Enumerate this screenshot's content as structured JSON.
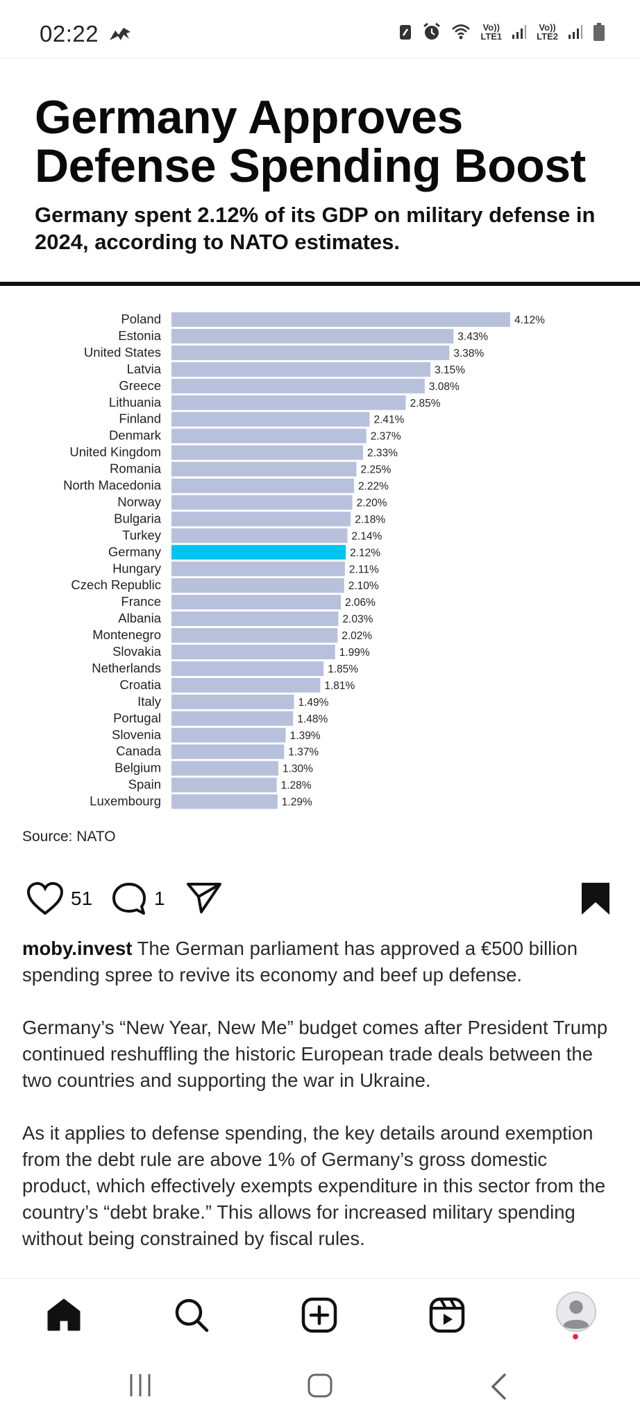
{
  "status_bar": {
    "time": "02:22",
    "net1": "LTE1",
    "net2": "LTE2",
    "vo1": "Vo))",
    "vo2": "Vo))",
    "signal_gen": "6"
  },
  "post": {
    "headline": "Germany Approves Defense Spending Boost",
    "subhead": "Germany spent 2.12% of its GDP on military defense in 2024, according to NATO estimates.",
    "source": "Source: NATO",
    "likes": "51",
    "comments": "1",
    "username": "moby.invest",
    "caption_paragraphs": [
      "The German parliament has approved a €500 billion spending spree to revive its economy and beef up defense.",
      "Germany’s “New Year, New Me” budget comes after President Trump continued reshuffling the historic European trade deals between the two countries and supporting the war in Ukraine.",
      "As it applies to defense spending, the key details around exemption from the debt rule are above 1% of Germany’s gross domestic product, which effectively exempts expenditure in this sector from the country’s “debt brake.” This allows for increased military spending without being constrained by fiscal rules."
    ]
  },
  "colors": {
    "bar": "#b7c1dc",
    "highlight": "#00c5f0",
    "text": "#111111"
  },
  "chart_data": {
    "type": "bar",
    "orientation": "horizontal",
    "highlight": "Germany",
    "categories": [
      "Poland",
      "Estonia",
      "United States",
      "Latvia",
      "Greece",
      "Lithuania",
      "Finland",
      "Denmark",
      "United Kingdom",
      "Romania",
      "North Macedonia",
      "Norway",
      "Bulgaria",
      "Turkey",
      "Germany",
      "Hungary",
      "Czech Republic",
      "France",
      "Albania",
      "Montenegro",
      "Slovakia",
      "Netherlands",
      "Croatia",
      "Italy",
      "Portugal",
      "Slovenia",
      "Canada",
      "Belgium",
      "Spain",
      "Luxembourg"
    ],
    "values": [
      4.12,
      3.43,
      3.38,
      3.15,
      3.08,
      2.85,
      2.41,
      2.37,
      2.33,
      2.25,
      2.22,
      2.2,
      2.18,
      2.14,
      2.12,
      2.11,
      2.1,
      2.06,
      2.03,
      2.02,
      1.99,
      1.85,
      1.81,
      1.49,
      1.48,
      1.39,
      1.37,
      1.3,
      1.28,
      1.29
    ],
    "labels": [
      "4.12%",
      "3.43%",
      "3.38%",
      "3.15%",
      "3.08%",
      "2.85%",
      "2.41%",
      "2.37%",
      "2.33%",
      "2.25%",
      "2.22%",
      "2.20%",
      "2.18%",
      "2.14%",
      "2.12%",
      "2.11%",
      "2.10%",
      "2.06%",
      "2.03%",
      "2.02%",
      "1.99%",
      "1.85%",
      "1.81%",
      "1.49%",
      "1.48%",
      "1.39%",
      "1.37%",
      "1.30%",
      "1.28%",
      "1.29%"
    ],
    "xlabel": "",
    "ylabel": ""
  },
  "nav": {
    "items": [
      "home-icon",
      "search-icon",
      "create-icon",
      "reels-icon",
      "profile-avatar"
    ]
  }
}
